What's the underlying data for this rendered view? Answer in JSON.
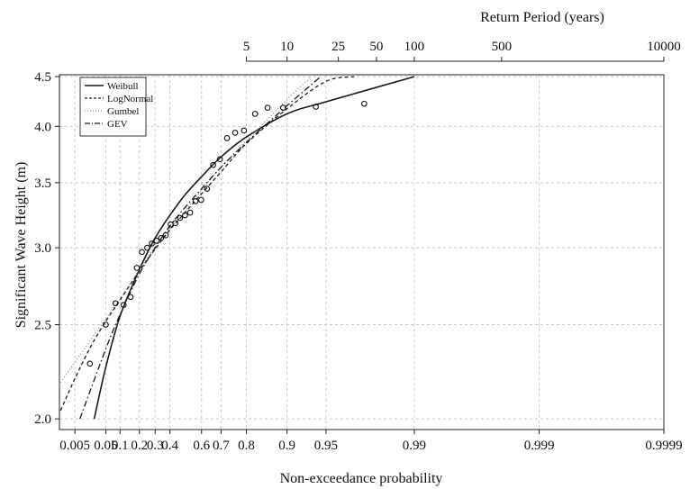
{
  "chart_data": {
    "type": "line",
    "xlabel": "Non-exceedance probability",
    "ylabel": "Significant Wave Height (m)",
    "top_axis_label": "Return Period (years)",
    "x_scale": "gumbel (reduced variate -ln(-ln p))",
    "y_scale": "log",
    "ylim": [
      1.95,
      4.52
    ],
    "xlim_probability": [
      0.001,
      0.9999
    ],
    "grid": true,
    "legend_position": "top-left",
    "x_ticks": [
      {
        "p": 0.005,
        "label": "0.005"
      },
      {
        "p": 0.05,
        "label": "0.05"
      },
      {
        "p": 0.1,
        "label": "0.1"
      },
      {
        "p": 0.2,
        "label": "0.2"
      },
      {
        "p": 0.3,
        "label": "0.3"
      },
      {
        "p": 0.4,
        "label": "0.4"
      },
      {
        "p": 0.6,
        "label": "0.6"
      },
      {
        "p": 0.7,
        "label": "0.7"
      },
      {
        "p": 0.8,
        "label": "0.8"
      },
      {
        "p": 0.9,
        "label": "0.9"
      },
      {
        "p": 0.95,
        "label": "0.95"
      },
      {
        "p": 0.99,
        "label": "0.99"
      },
      {
        "p": 0.999,
        "label": "0.999"
      },
      {
        "p": 0.9999,
        "label": "0.9999"
      }
    ],
    "y_ticks": [
      {
        "v": 2.0,
        "label": "2.0"
      },
      {
        "v": 2.5,
        "label": "2.5"
      },
      {
        "v": 3.0,
        "label": "3.0"
      },
      {
        "v": 3.5,
        "label": "3.5"
      },
      {
        "v": 4.0,
        "label": "4.0"
      },
      {
        "v": 4.5,
        "label": "4.5"
      }
    ],
    "top_ticks": [
      {
        "T": 5,
        "label": "5"
      },
      {
        "T": 10,
        "label": "10"
      },
      {
        "T": 25,
        "label": "25"
      },
      {
        "T": 50,
        "label": "50"
      },
      {
        "T": 100,
        "label": "100"
      },
      {
        "T": 500,
        "label": "500"
      },
      {
        "T": 10000,
        "label": "10000"
      }
    ],
    "observations": [
      {
        "p": 0.018,
        "y": 2.28
      },
      {
        "p": 0.05,
        "y": 2.5
      },
      {
        "p": 0.082,
        "y": 2.63
      },
      {
        "p": 0.116,
        "y": 2.62
      },
      {
        "p": 0.15,
        "y": 2.67
      },
      {
        "p": 0.185,
        "y": 2.86
      },
      {
        "p": 0.215,
        "y": 2.97
      },
      {
        "p": 0.248,
        "y": 3.0
      },
      {
        "p": 0.278,
        "y": 3.03
      },
      {
        "p": 0.31,
        "y": 3.05
      },
      {
        "p": 0.34,
        "y": 3.07
      },
      {
        "p": 0.372,
        "y": 3.09
      },
      {
        "p": 0.405,
        "y": 3.17
      },
      {
        "p": 0.437,
        "y": 3.18
      },
      {
        "p": 0.468,
        "y": 3.22
      },
      {
        "p": 0.5,
        "y": 3.24
      },
      {
        "p": 0.532,
        "y": 3.26
      },
      {
        "p": 0.565,
        "y": 3.35
      },
      {
        "p": 0.598,
        "y": 3.36
      },
      {
        "p": 0.63,
        "y": 3.45
      },
      {
        "p": 0.662,
        "y": 3.65
      },
      {
        "p": 0.695,
        "y": 3.7
      },
      {
        "p": 0.727,
        "y": 3.89
      },
      {
        "p": 0.76,
        "y": 3.94
      },
      {
        "p": 0.792,
        "y": 3.96
      },
      {
        "p": 0.827,
        "y": 4.12
      },
      {
        "p": 0.86,
        "y": 4.18
      },
      {
        "p": 0.893,
        "y": 4.18
      },
      {
        "p": 0.94,
        "y": 4.19
      },
      {
        "p": 0.975,
        "y": 4.22
      }
    ],
    "series": [
      {
        "name": "Weibull",
        "style": "solid",
        "color": "#1a1a1a",
        "points": [
          {
            "p": 0.0245,
            "y": 2.0
          },
          {
            "p": 0.05,
            "y": 2.26
          },
          {
            "p": 0.1,
            "y": 2.55
          },
          {
            "p": 0.2,
            "y": 2.85
          },
          {
            "p": 0.3,
            "y": 3.07
          },
          {
            "p": 0.4,
            "y": 3.24
          },
          {
            "p": 0.5,
            "y": 3.4
          },
          {
            "p": 0.6,
            "y": 3.55
          },
          {
            "p": 0.7,
            "y": 3.72
          },
          {
            "p": 0.8,
            "y": 3.9
          },
          {
            "p": 0.9,
            "y": 4.12
          },
          {
            "p": 0.95,
            "y": 4.24
          },
          {
            "p": 0.99,
            "y": 4.5
          }
        ]
      },
      {
        "name": "LogNormal",
        "style": "dashed",
        "color": "#1a1a1a",
        "points": [
          {
            "p": 0.001,
            "y": 2.04
          },
          {
            "p": 0.005,
            "y": 2.2
          },
          {
            "p": 0.02,
            "y": 2.38
          },
          {
            "p": 0.05,
            "y": 2.52
          },
          {
            "p": 0.1,
            "y": 2.65
          },
          {
            "p": 0.2,
            "y": 2.84
          },
          {
            "p": 0.3,
            "y": 2.99
          },
          {
            "p": 0.4,
            "y": 3.13
          },
          {
            "p": 0.5,
            "y": 3.26
          },
          {
            "p": 0.6,
            "y": 3.41
          },
          {
            "p": 0.7,
            "y": 3.59
          },
          {
            "p": 0.8,
            "y": 3.84
          },
          {
            "p": 0.9,
            "y": 4.17
          },
          {
            "p": 0.95,
            "y": 4.45
          },
          {
            "p": 0.97,
            "y": 4.5
          }
        ]
      },
      {
        "name": "Gumbel",
        "style": "dotted",
        "color": "#8a8a8a",
        "points": [
          {
            "p": 0.001,
            "y": 2.18
          },
          {
            "p": 0.1,
            "y": 2.66
          },
          {
            "p": 0.3,
            "y": 3.01
          },
          {
            "p": 0.5,
            "y": 3.27
          },
          {
            "p": 0.7,
            "y": 3.63
          },
          {
            "p": 0.9,
            "y": 4.26
          },
          {
            "p": 0.935,
            "y": 4.5
          }
        ]
      },
      {
        "name": "GEV",
        "style": "dashdot",
        "color": "#1a1a1a",
        "points": [
          {
            "p": 0.008,
            "y": 2.0
          },
          {
            "p": 0.05,
            "y": 2.36
          },
          {
            "p": 0.1,
            "y": 2.56
          },
          {
            "p": 0.2,
            "y": 2.82
          },
          {
            "p": 0.3,
            "y": 3.0
          },
          {
            "p": 0.4,
            "y": 3.16
          },
          {
            "p": 0.5,
            "y": 3.3
          },
          {
            "p": 0.6,
            "y": 3.45
          },
          {
            "p": 0.7,
            "y": 3.63
          },
          {
            "p": 0.8,
            "y": 3.85
          },
          {
            "p": 0.9,
            "y": 4.2
          },
          {
            "p": 0.945,
            "y": 4.5
          }
        ]
      }
    ]
  }
}
